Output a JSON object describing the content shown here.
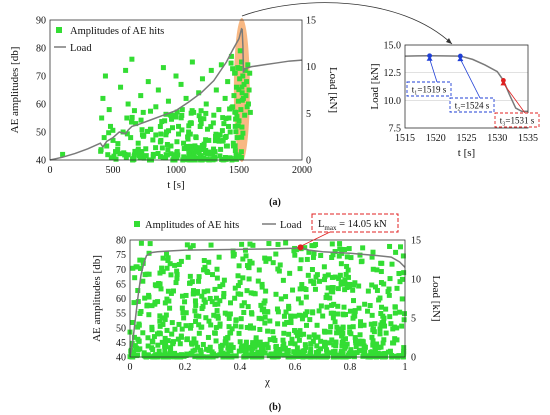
{
  "captions": {
    "a": "(a)",
    "b": "(b)"
  },
  "chart_data": [
    {
      "id": "a-main",
      "type": "scatter",
      "title": "",
      "xlabel": "t [s]",
      "ylabel": "AE amplitudes [db]",
      "y2label": "Load [kN]",
      "xlim": [
        0,
        2000
      ],
      "ylim": [
        40,
        90
      ],
      "y2lim": [
        0,
        15
      ],
      "xticks": [
        "0",
        "500",
        "1000",
        "1500",
        "2000"
      ],
      "yticks": [
        "40",
        "50",
        "60",
        "70",
        "80",
        "90"
      ],
      "y2ticks": [
        "0",
        "5",
        "10",
        "15"
      ],
      "legend": {
        "placement": "top-left",
        "entries": [
          "Amplitudes of AE hits",
          "Load"
        ]
      },
      "colors": {
        "points": "#33dd33",
        "load": "#7a7a7a",
        "highlight": "#f5a05a"
      },
      "highlight": {
        "x_from": 1500,
        "x_to": 1545
      },
      "series": [
        {
          "name": "Amplitudes of AE hits",
          "axis": "left",
          "style": "markers",
          "x": [
            100,
            410,
            420,
            430,
            440,
            450,
            470,
            480,
            500,
            520,
            560,
            580,
            600,
            610,
            620,
            640,
            650,
            680,
            700,
            720,
            740,
            760,
            780,
            800,
            820,
            840,
            860,
            880,
            900,
            910,
            920,
            940,
            960,
            980,
            1000,
            1010,
            1020,
            1040,
            1050,
            1060,
            1080,
            1100,
            1120,
            1130,
            1140,
            1160,
            1180,
            1200,
            1210,
            1220,
            1240,
            1250,
            1260,
            1280,
            1300,
            1310,
            1320,
            1340,
            1350,
            1360,
            1380,
            1390,
            1400,
            1410,
            1420,
            1430,
            1440,
            1450,
            1455,
            1460,
            1465,
            1470,
            1475,
            1480,
            1485,
            1490,
            1495,
            1500,
            1505,
            1510,
            1515,
            1520,
            1525,
            1530,
            1535,
            1540,
            1545,
            1550,
            1555,
            1560,
            1565,
            1570,
            1575,
            1580,
            1585,
            1590
          ],
          "y": [
            42,
            55,
            62,
            48,
            70,
            45,
            58,
            52,
            47,
            43,
            66,
            50,
            72,
            55,
            60,
            48,
            76,
            53,
            46,
            63,
            57,
            44,
            68,
            51,
            42,
            59,
            65,
            47,
            73,
            54,
            49,
            61,
            45,
            56,
            70,
            43,
            52,
            67,
            58,
            46,
            62,
            50,
            44,
            75,
            57,
            48,
            64,
            53,
            69,
            45,
            60,
            51,
            47,
            72,
            56,
            43,
            65,
            58,
            49,
            74,
            53,
            62,
            45,
            68,
            55,
            50,
            77,
            59,
            46,
            63,
            71,
            52,
            57,
            66,
            48,
            73,
            61,
            54,
            69,
            79,
            58,
            75,
            64,
            70,
            62,
            67,
            56,
            72,
            63,
            68,
            59,
            74,
            60,
            65,
            71,
            57
          ]
        },
        {
          "name": "Load",
          "axis": "right",
          "style": "line",
          "x": [
            0,
            100,
            200,
            300,
            400,
            420,
            450,
            500,
            550,
            600,
            620,
            650,
            700,
            800,
            900,
            1000,
            1100,
            1200,
            1300,
            1400,
            1450,
            1500,
            1520,
            1525,
            1531,
            1535,
            1550,
            1600,
            1700,
            1800,
            1900,
            2000
          ],
          "y": [
            0,
            0.3,
            0.7,
            1.2,
            1.8,
            1.4,
            2.0,
            2.4,
            3.0,
            2.8,
            3.2,
            3.6,
            3.8,
            4.3,
            4.8,
            5.3,
            6.2,
            7.2,
            8.5,
            10.5,
            11.8,
            13.0,
            14.05,
            14.0,
            12.2,
            9.5,
            9.8,
            10.0,
            10.2,
            10.4,
            10.6,
            10.7
          ]
        }
      ]
    },
    {
      "id": "a-inset",
      "type": "line",
      "title": "",
      "xlabel": "t [s]",
      "ylabel": "Load [kN]",
      "xlim": [
        1515,
        1535
      ],
      "ylim": [
        7.5,
        15.0
      ],
      "xticks": [
        "1515",
        "1520",
        "1525",
        "1530",
        "1535"
      ],
      "yticks": [
        "7.5",
        "10.0",
        "12.5",
        "15.0"
      ],
      "grid": "horizontal",
      "colors": {
        "load": "#7a7a7a",
        "blue": "#1f3fd6",
        "red": "#e02020"
      },
      "series": [
        {
          "name": "Load",
          "x": [
            1515,
            1517,
            1519,
            1521,
            1524,
            1526,
            1528,
            1530,
            1531,
            1532,
            1533,
            1534,
            1535
          ],
          "y": [
            14.0,
            14.02,
            14.03,
            14.02,
            14.0,
            13.7,
            13.2,
            12.6,
            11.8,
            10.5,
            9.3,
            9.0,
            9.0
          ]
        }
      ],
      "annotations": [
        {
          "label": "t₁=1519 s",
          "x": 1519,
          "y": 14.03,
          "color": "blue"
        },
        {
          "label": "t₂=1524 s",
          "x": 1524,
          "y": 14.0,
          "color": "blue"
        },
        {
          "label": "t₃=1531 s",
          "x": 1531,
          "y": 11.8,
          "color": "red"
        }
      ]
    },
    {
      "id": "b-main",
      "type": "scatter",
      "title": "",
      "xlabel": "χ",
      "ylabel": "AE amplitudes [db]",
      "y2label": "Load [kN]",
      "xlim": [
        0,
        1
      ],
      "ylim": [
        40,
        80
      ],
      "y2lim": [
        0,
        15
      ],
      "xticks": [
        "0",
        "0.2",
        "0.4",
        "0.6",
        "0.8",
        "1"
      ],
      "yticks": [
        "40",
        "45",
        "50",
        "55",
        "60",
        "65",
        "70",
        "75",
        "80"
      ],
      "y2ticks": [
        "0",
        "5",
        "10",
        "15"
      ],
      "legend": {
        "placement": "top",
        "entries": [
          "Amplitudes of AE hits",
          "Load"
        ]
      },
      "colors": {
        "points": "#33dd33",
        "load": "#7a7a7a",
        "max": "#e02020"
      },
      "max_annotation": {
        "label": "L",
        "sub": "max",
        "value_text": " = 14.05 kN",
        "x": 0.62,
        "y": 14.05
      },
      "series": [
        {
          "name": "Amplitudes of AE hits",
          "axis": "left",
          "style": "markers",
          "density": "dense"
        },
        {
          "name": "Load",
          "axis": "right",
          "style": "line",
          "x": [
            0,
            0.01,
            0.02,
            0.03,
            0.04,
            0.05,
            0.06,
            0.08,
            0.1,
            0.15,
            0.2,
            0.3,
            0.4,
            0.5,
            0.55,
            0.6,
            0.62,
            0.65,
            0.7,
            0.8,
            0.9,
            0.95,
            0.98,
            1.0
          ],
          "y": [
            0,
            2,
            5,
            8,
            10.5,
            12,
            13,
            13.4,
            13.5,
            13.6,
            13.7,
            13.75,
            13.8,
            13.85,
            13.9,
            13.95,
            14.05,
            13.7,
            13.5,
            13.3,
            13.0,
            12.8,
            12.2,
            11.5
          ]
        }
      ]
    }
  ]
}
